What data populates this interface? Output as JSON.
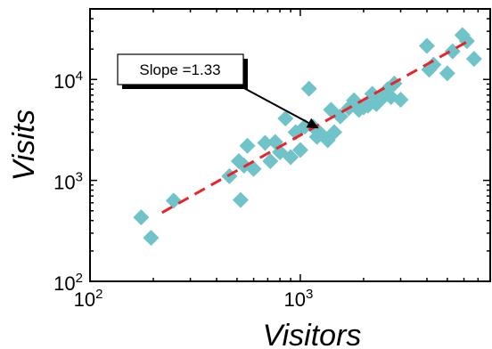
{
  "chart_data": {
    "type": "scatter",
    "xlabel": "Visitors",
    "ylabel": "Visits",
    "xscale": "log",
    "yscale": "log",
    "xlim": [
      100,
      8000
    ],
    "ylim": [
      100,
      50000
    ],
    "x_ticks": [
      {
        "value": 100,
        "base": "10",
        "exp": "2"
      },
      {
        "value": 1000,
        "base": "10",
        "exp": "3"
      }
    ],
    "y_ticks": [
      {
        "value": 100,
        "base": "10",
        "exp": "2"
      },
      {
        "value": 1000,
        "base": "10",
        "exp": "3"
      },
      {
        "value": 10000,
        "base": "10",
        "exp": "4"
      }
    ],
    "grid": false,
    "marker": "diamond",
    "point_color": "#6fc3c9",
    "fit_color": "#e8232a",
    "points": [
      {
        "x": 175,
        "y": 430
      },
      {
        "x": 195,
        "y": 270
      },
      {
        "x": 250,
        "y": 630
      },
      {
        "x": 460,
        "y": 1100
      },
      {
        "x": 510,
        "y": 1550
      },
      {
        "x": 520,
        "y": 640
      },
      {
        "x": 540,
        "y": 1400
      },
      {
        "x": 560,
        "y": 2200
      },
      {
        "x": 600,
        "y": 1300
      },
      {
        "x": 680,
        "y": 2350
      },
      {
        "x": 720,
        "y": 1550
      },
      {
        "x": 760,
        "y": 2400
      },
      {
        "x": 800,
        "y": 1900
      },
      {
        "x": 850,
        "y": 4100
      },
      {
        "x": 900,
        "y": 1700
      },
      {
        "x": 950,
        "y": 3000
      },
      {
        "x": 1000,
        "y": 2000
      },
      {
        "x": 1050,
        "y": 3400
      },
      {
        "x": 1100,
        "y": 8100
      },
      {
        "x": 1150,
        "y": 3400
      },
      {
        "x": 1200,
        "y": 2700
      },
      {
        "x": 1250,
        "y": 2900
      },
      {
        "x": 1350,
        "y": 2500
      },
      {
        "x": 1400,
        "y": 5000
      },
      {
        "x": 1450,
        "y": 3000
      },
      {
        "x": 1550,
        "y": 4300
      },
      {
        "x": 1700,
        "y": 5200
      },
      {
        "x": 1800,
        "y": 6200
      },
      {
        "x": 1900,
        "y": 5000
      },
      {
        "x": 2000,
        "y": 5300
      },
      {
        "x": 2100,
        "y": 5500
      },
      {
        "x": 2200,
        "y": 7200
      },
      {
        "x": 2300,
        "y": 5700
      },
      {
        "x": 2400,
        "y": 6500
      },
      {
        "x": 2500,
        "y": 6800
      },
      {
        "x": 2600,
        "y": 8000
      },
      {
        "x": 2700,
        "y": 6700
      },
      {
        "x": 2800,
        "y": 9100
      },
      {
        "x": 3000,
        "y": 6300
      },
      {
        "x": 4000,
        "y": 21500
      },
      {
        "x": 4100,
        "y": 12500
      },
      {
        "x": 4300,
        "y": 14000
      },
      {
        "x": 5000,
        "y": 11500
      },
      {
        "x": 5300,
        "y": 19000
      },
      {
        "x": 5900,
        "y": 27500
      },
      {
        "x": 6200,
        "y": 24000
      },
      {
        "x": 6700,
        "y": 16000
      }
    ],
    "fit_line": {
      "x": [
        220,
        6300
      ],
      "y": [
        480,
        24000
      ],
      "style": "dashed"
    },
    "annotation": {
      "text": "Slope =1.33",
      "arrow_to": {
        "x": 1250,
        "y": 2900
      }
    }
  }
}
